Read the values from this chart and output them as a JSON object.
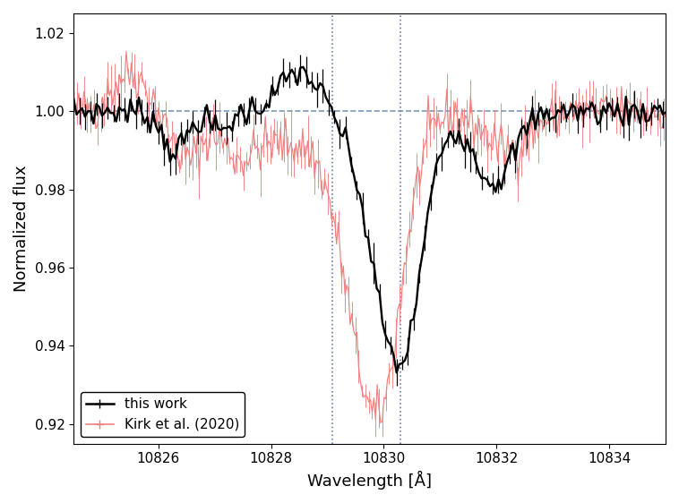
{
  "xlim": [
    10824.5,
    10835.0
  ],
  "ylim": [
    0.915,
    1.025
  ],
  "xlabel": "Wavelength [Å]",
  "ylabel": "Normalized flux",
  "dashed_line_y": 1.0,
  "vline1_x": 10829.09,
  "vline2_x": 10830.3,
  "vline_color": "#6b7fa3",
  "dashed_color": "#7a99b8",
  "black_color": "#000000",
  "red_color": "#f08080",
  "legend_labels": [
    "this work",
    "Kirk et al. (2020)"
  ],
  "xticks": [
    10826,
    10828,
    10830,
    10832,
    10834
  ],
  "yticks": [
    0.92,
    0.94,
    0.96,
    0.98,
    1.0,
    1.02
  ],
  "black_n": 210,
  "red_n": 350,
  "black_noise_std": 0.0018,
  "black_err_mean": 0.0022,
  "red_noise_std": 0.003,
  "red_err_mean": 0.003
}
